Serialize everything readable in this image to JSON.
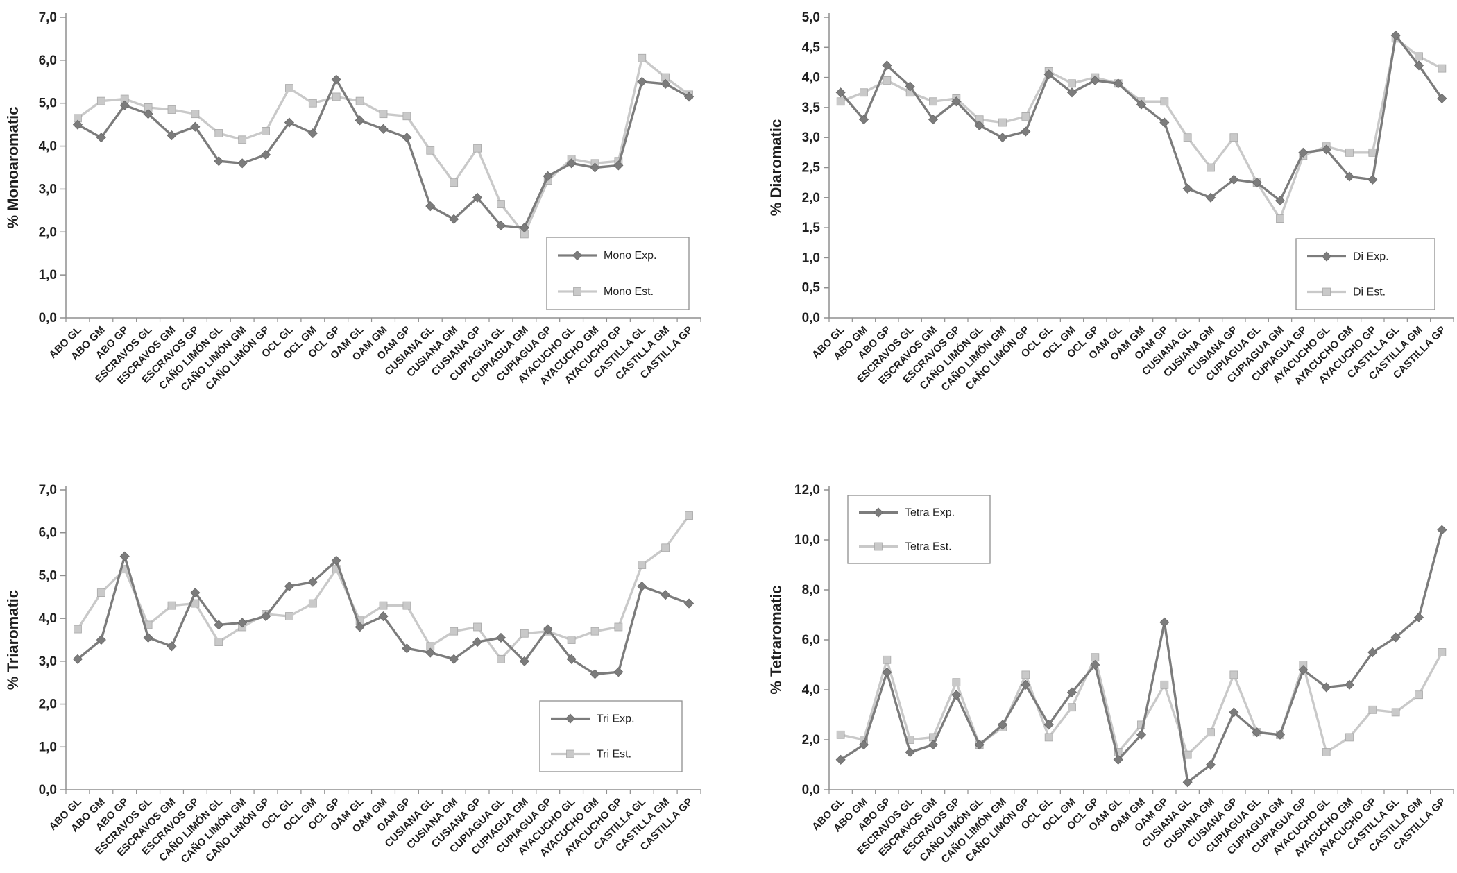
{
  "page": {
    "background": "#ffffff"
  },
  "colors": {
    "exp": "#7c7c7c",
    "est": "#c9c9c9",
    "axis": "#8f8f8f",
    "text": "#1f1f1f",
    "legend_bg": "#ffffff"
  },
  "chart_data": [
    {
      "type": "line",
      "title": "",
      "ylabel": "% Monoaromatic",
      "xlabel": "",
      "ylim": [
        0,
        7
      ],
      "ytick_step": 1.0,
      "decimal_separator": ",",
      "grid": false,
      "legend_position": "bottom-right",
      "categories": [
        "ABO GL",
        "ABO GM",
        "ABO GP",
        "ESCRAVOS GL",
        "ESCRAVOS GM",
        "ESCRAVOS GP",
        "CAÑO LIMÓN GL",
        "CAÑO LIMÓN GM",
        "CAÑO LIMÓN GP",
        "OCL GL",
        "OCL GM",
        "OCL GP",
        "OAM GL",
        "OAM GM",
        "OAM GP",
        "CUSIANA GL",
        "CUSIANA GM",
        "CUSIANA GP",
        "CUPIAGUA GL",
        "CUPIAGUA GM",
        "CUPIAGUA GP",
        "AYACUCHO GL",
        "AYACUCHO GM",
        "AYACUCHO GP",
        "CASTILLA GL",
        "CASTILLA GM",
        "CASTILLA GP"
      ],
      "series": [
        {
          "name": "Mono Exp.",
          "marker": "diamond",
          "color_key": "exp",
          "values": [
            4.5,
            4.2,
            4.95,
            4.75,
            4.25,
            4.45,
            3.65,
            3.6,
            3.8,
            4.55,
            4.3,
            5.55,
            4.6,
            4.4,
            4.2,
            2.6,
            2.3,
            2.8,
            2.15,
            2.1,
            3.3,
            3.6,
            3.5,
            3.55,
            5.5,
            5.45,
            5.15
          ]
        },
        {
          "name": "Mono Est.",
          "marker": "square",
          "color_key": "est",
          "values": [
            4.65,
            5.05,
            5.1,
            4.9,
            4.85,
            4.75,
            4.3,
            4.15,
            4.35,
            5.35,
            5.0,
            5.15,
            5.05,
            4.75,
            4.7,
            3.9,
            3.15,
            3.95,
            2.65,
            1.95,
            3.2,
            3.7,
            3.6,
            3.65,
            6.05,
            5.6,
            5.2
          ]
        }
      ]
    },
    {
      "type": "line",
      "title": "",
      "ylabel": "% Diaromatic",
      "xlabel": "",
      "ylim": [
        0,
        5
      ],
      "ytick_step": 0.5,
      "decimal_separator": ",",
      "grid": false,
      "legend_position": "bottom-right",
      "categories": [
        "ABO GL",
        "ABO GM",
        "ABO GP",
        "ESCRAVOS GL",
        "ESCRAVOS GM",
        "ESCRAVOS GP",
        "CAÑO LIMÓN GL",
        "CAÑO LIMÓN GM",
        "CAÑO LIMÓN GP",
        "OCL GL",
        "OCL GM",
        "OCL GP",
        "OAM GL",
        "OAM GM",
        "OAM GP",
        "CUSIANA GL",
        "CUSIANA GM",
        "CUSIANA GP",
        "CUPIAGUA GL",
        "CUPIAGUA GM",
        "CUPIAGUA GP",
        "AYACUCHO GL",
        "AYACUCHO GM",
        "AYACUCHO GP",
        "CASTILLA GL",
        "CASTILLA GM",
        "CASTILLA GP"
      ],
      "series": [
        {
          "name": "Di Exp.",
          "marker": "diamond",
          "color_key": "exp",
          "values": [
            3.75,
            3.3,
            4.2,
            3.85,
            3.3,
            3.6,
            3.2,
            3.0,
            3.1,
            4.05,
            3.75,
            3.95,
            3.9,
            3.55,
            3.25,
            2.15,
            2.0,
            2.3,
            2.25,
            1.95,
            2.75,
            2.8,
            2.35,
            2.3,
            4.7,
            4.2,
            3.65
          ]
        },
        {
          "name": "Di Est.",
          "marker": "square",
          "color_key": "est",
          "values": [
            3.6,
            3.75,
            3.95,
            3.75,
            3.6,
            3.65,
            3.3,
            3.25,
            3.35,
            4.1,
            3.9,
            4.0,
            3.9,
            3.6,
            3.6,
            3.0,
            2.5,
            3.0,
            2.25,
            1.65,
            2.7,
            2.85,
            2.75,
            2.75,
            4.65,
            4.35,
            4.15
          ]
        }
      ]
    },
    {
      "type": "line",
      "title": "",
      "ylabel": "% Triaromatic",
      "xlabel": "",
      "ylim": [
        0,
        7
      ],
      "ytick_step": 1.0,
      "decimal_separator": ",",
      "grid": false,
      "legend_position": "bottom-right",
      "categories": [
        "ABO GL",
        "ABO GM",
        "ABO GP",
        "ESCRAVOS GL",
        "ESCRAVOS GM",
        "ESCRAVOS GP",
        "CAÑO LIMÓN GL",
        "CAÑO LIMÓN GM",
        "CAÑO LIMÓN GP",
        "OCL GL",
        "OCL GM",
        "OCL GP",
        "OAM GL",
        "OAM GM",
        "OAM GP",
        "CUSIANA GL",
        "CUSIANA GM",
        "CUSIANA GP",
        "CUPIAGUA GL",
        "CUPIAGUA GM",
        "CUPIAGUA GP",
        "AYACUCHO GL",
        "AYACUCHO GM",
        "AYACUCHO GP",
        "CASTILLA GL",
        "CASTILLA GM",
        "CASTILLA GP"
      ],
      "series": [
        {
          "name": "Tri Exp.",
          "marker": "diamond",
          "color_key": "exp",
          "values": [
            3.05,
            3.5,
            5.45,
            3.55,
            3.35,
            4.6,
            3.85,
            3.9,
            4.05,
            4.75,
            4.85,
            5.35,
            3.8,
            4.05,
            3.3,
            3.2,
            3.05,
            3.45,
            3.55,
            3.0,
            3.75,
            3.05,
            2.7,
            2.75,
            4.75,
            4.55,
            4.35
          ]
        },
        {
          "name": "Tri Est.",
          "marker": "square",
          "color_key": "est",
          "values": [
            3.75,
            4.6,
            5.15,
            3.85,
            4.3,
            4.35,
            3.45,
            3.8,
            4.1,
            4.05,
            4.35,
            5.15,
            3.95,
            4.3,
            4.3,
            3.35,
            3.7,
            3.8,
            3.05,
            3.65,
            3.7,
            3.5,
            3.7,
            3.8,
            5.25,
            5.65,
            6.4
          ]
        }
      ]
    },
    {
      "type": "line",
      "title": "",
      "ylabel": "% Tetraromatic",
      "xlabel": "",
      "ylim": [
        0,
        12
      ],
      "ytick_step": 2.0,
      "decimal_separator": ",",
      "grid": false,
      "legend_position": "top-left",
      "categories": [
        "ABO GL",
        "ABO GM",
        "ABO GP",
        "ESCRAVOS GL",
        "ESCRAVOS GM",
        "ESCRAVOS GP",
        "CAÑO LIMÓN GL",
        "CAÑO LIMÓN GM",
        "CAÑO LIMÓN GP",
        "OCL GL",
        "OCL GM",
        "OCL GP",
        "OAM GL",
        "OAM GM",
        "OAM GP",
        "CUSIANA GL",
        "CUSIANA GM",
        "CUSIANA GP",
        "CUPIAGUA GL",
        "CUPIAGUA GM",
        "CUPIAGUA GP",
        "AYACUCHO GL",
        "AYACUCHO GM",
        "AYACUCHO GP",
        "CASTILLA GL",
        "CASTILLA GM",
        "CASTILLA GP"
      ],
      "series": [
        {
          "name": "Tetra Exp.",
          "marker": "diamond",
          "color_key": "exp",
          "values": [
            1.2,
            1.8,
            4.7,
            1.5,
            1.8,
            3.8,
            1.8,
            2.6,
            4.2,
            2.6,
            3.9,
            5.0,
            1.2,
            2.2,
            6.7,
            0.3,
            1.0,
            3.1,
            2.3,
            2.2,
            4.8,
            4.1,
            4.2,
            5.5,
            6.1,
            6.9,
            10.4
          ]
        },
        {
          "name": "Tetra Est.",
          "marker": "square",
          "color_key": "est",
          "values": [
            2.2,
            2.0,
            5.2,
            2.0,
            2.1,
            4.3,
            1.8,
            2.5,
            4.6,
            2.1,
            3.3,
            5.3,
            1.5,
            2.6,
            4.2,
            1.4,
            2.3,
            4.6,
            2.3,
            2.2,
            5.0,
            1.5,
            2.1,
            3.2,
            3.1,
            3.8,
            5.5
          ]
        }
      ]
    }
  ]
}
